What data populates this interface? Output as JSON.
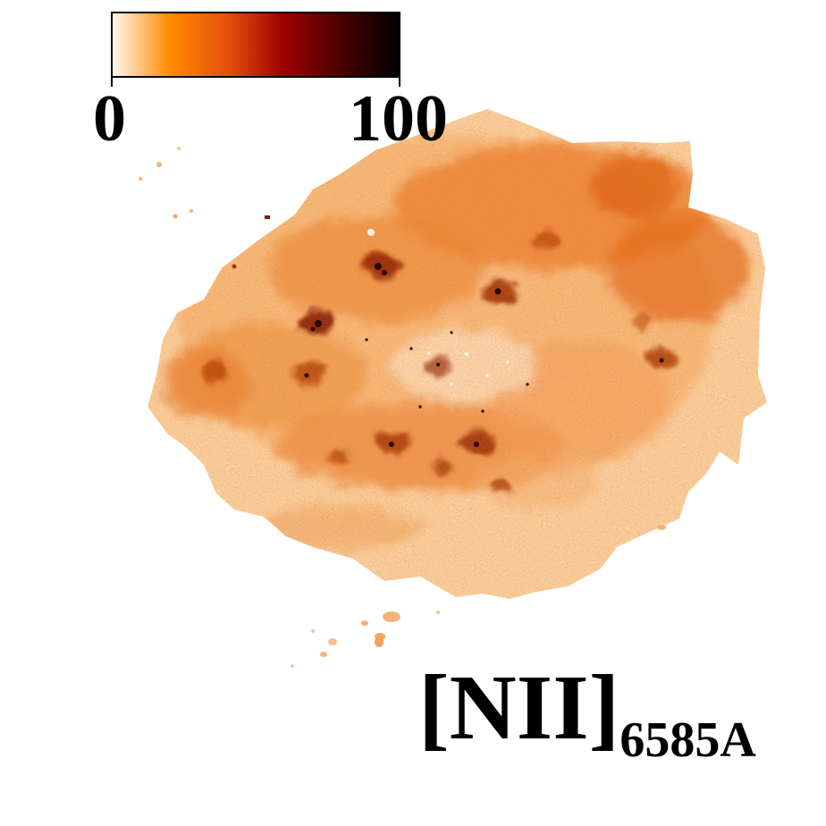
{
  "colorbar": {
    "min_label": "0",
    "max_label": "100",
    "colors": [
      "#fff8f0",
      "#ff8a00",
      "#e8500c",
      "#9c0000",
      "#4a0000",
      "#000000"
    ]
  },
  "line_label": {
    "main": "[NII]",
    "subscript": "6585A"
  },
  "map": {
    "palette": {
      "pale": "#fbd0a6",
      "light": "#f6a564",
      "mid": "#ee7b2a",
      "orange": "#e65810",
      "dark": "#b32a00",
      "darker": "#6e0c00",
      "black": "#2a0000"
    }
  }
}
